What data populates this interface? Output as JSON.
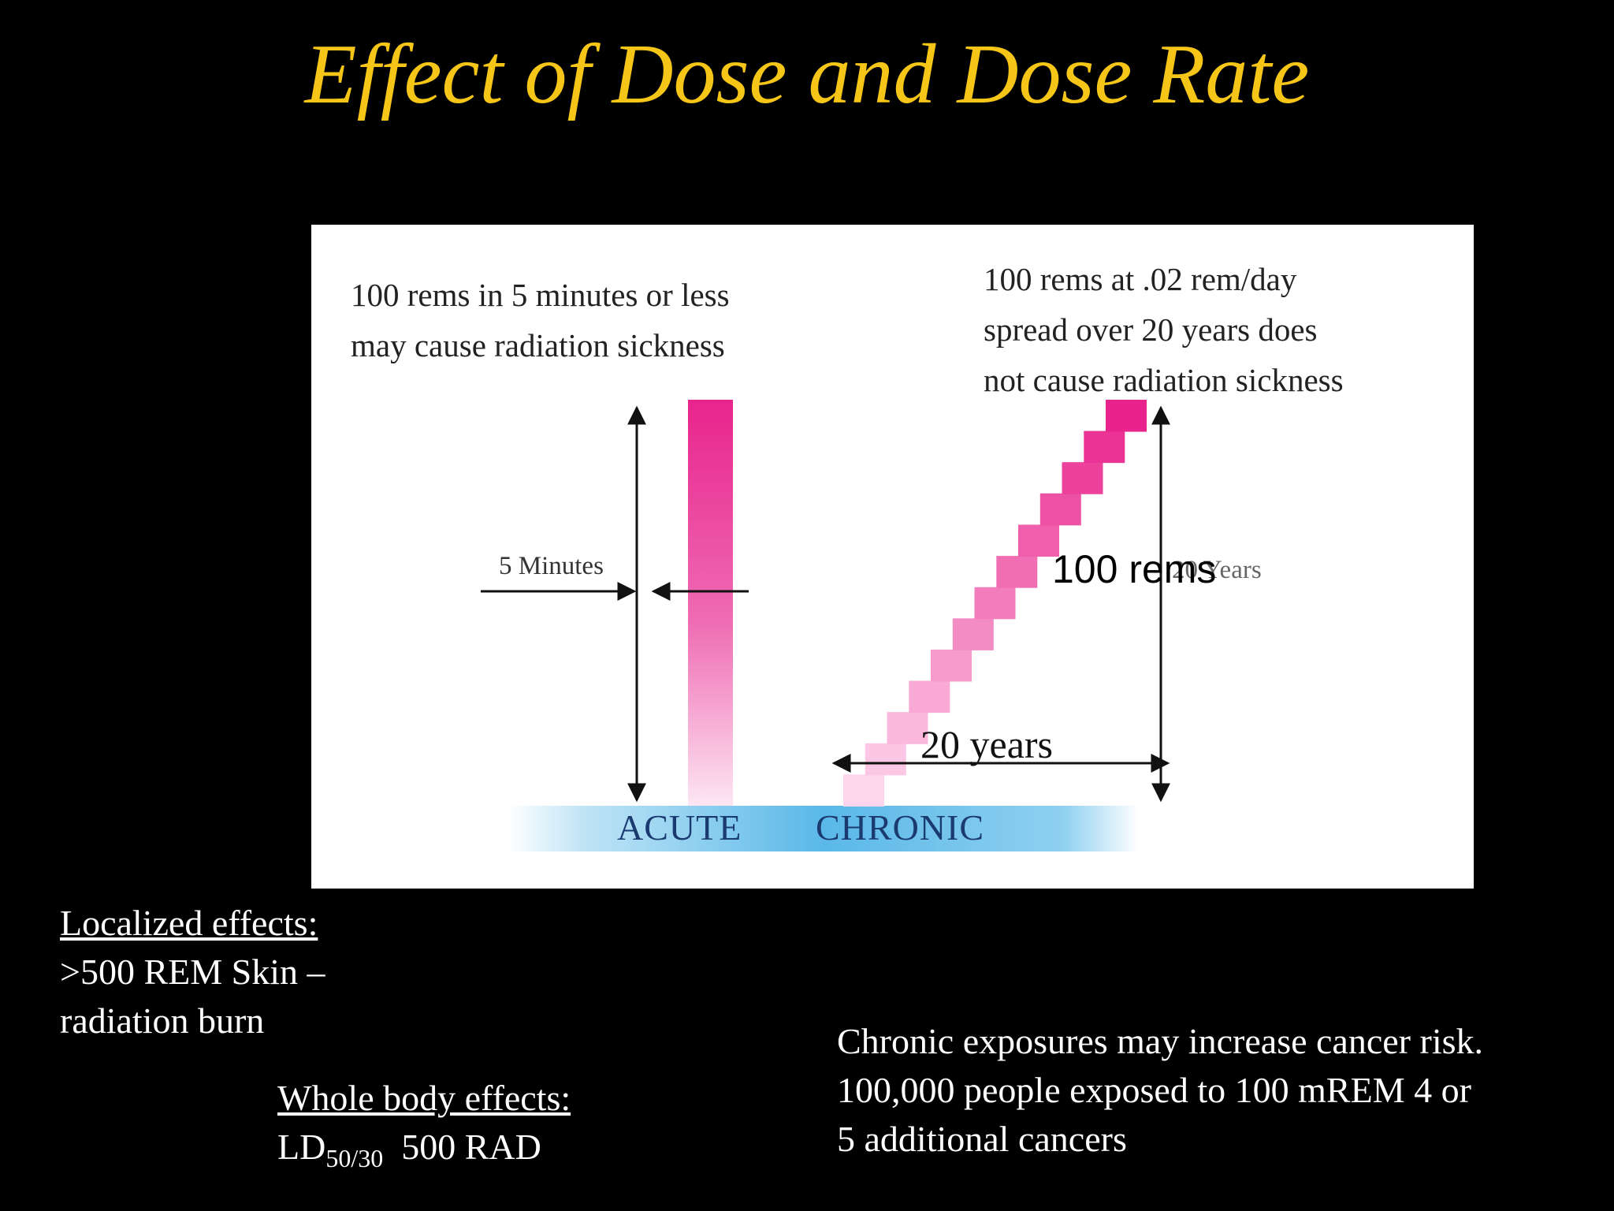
{
  "slide": {
    "title": "Effect of Dose and Dose Rate",
    "colors": {
      "title": "#f5c518",
      "background": "#000000",
      "bar": "#e8248c",
      "baseline": "#3aa8e0"
    }
  },
  "figure": {
    "acute_caption": [
      "100 rems in 5 minutes or less",
      "may cause radiation sickness"
    ],
    "chronic_caption": [
      "100 rems at .02 rem/day",
      "spread over 20 years does",
      "not cause radiation sickness"
    ],
    "five_minutes_label": "5 Minutes",
    "rems_label": "100 rems",
    "twenty_years_small": "20 Years",
    "twenty_years_label": "20 years",
    "acute_label": "ACUTE",
    "chronic_label": "CHRONIC"
  },
  "notes": {
    "localized_heading": "Localized effects:",
    "localized_line1": ">500 REM Skin –",
    "localized_line2": "radiation burn",
    "whole_body_heading": "Whole body effects:",
    "ld_prefix": "LD",
    "ld_sub": "50/30",
    "ld_value": "500 RAD",
    "chronic_line1": "Chronic exposures may increase cancer risk.",
    "chronic_line2": "100,000 people exposed to 100 mREM 4 or",
    "chronic_line3": "5 additional cancers"
  }
}
